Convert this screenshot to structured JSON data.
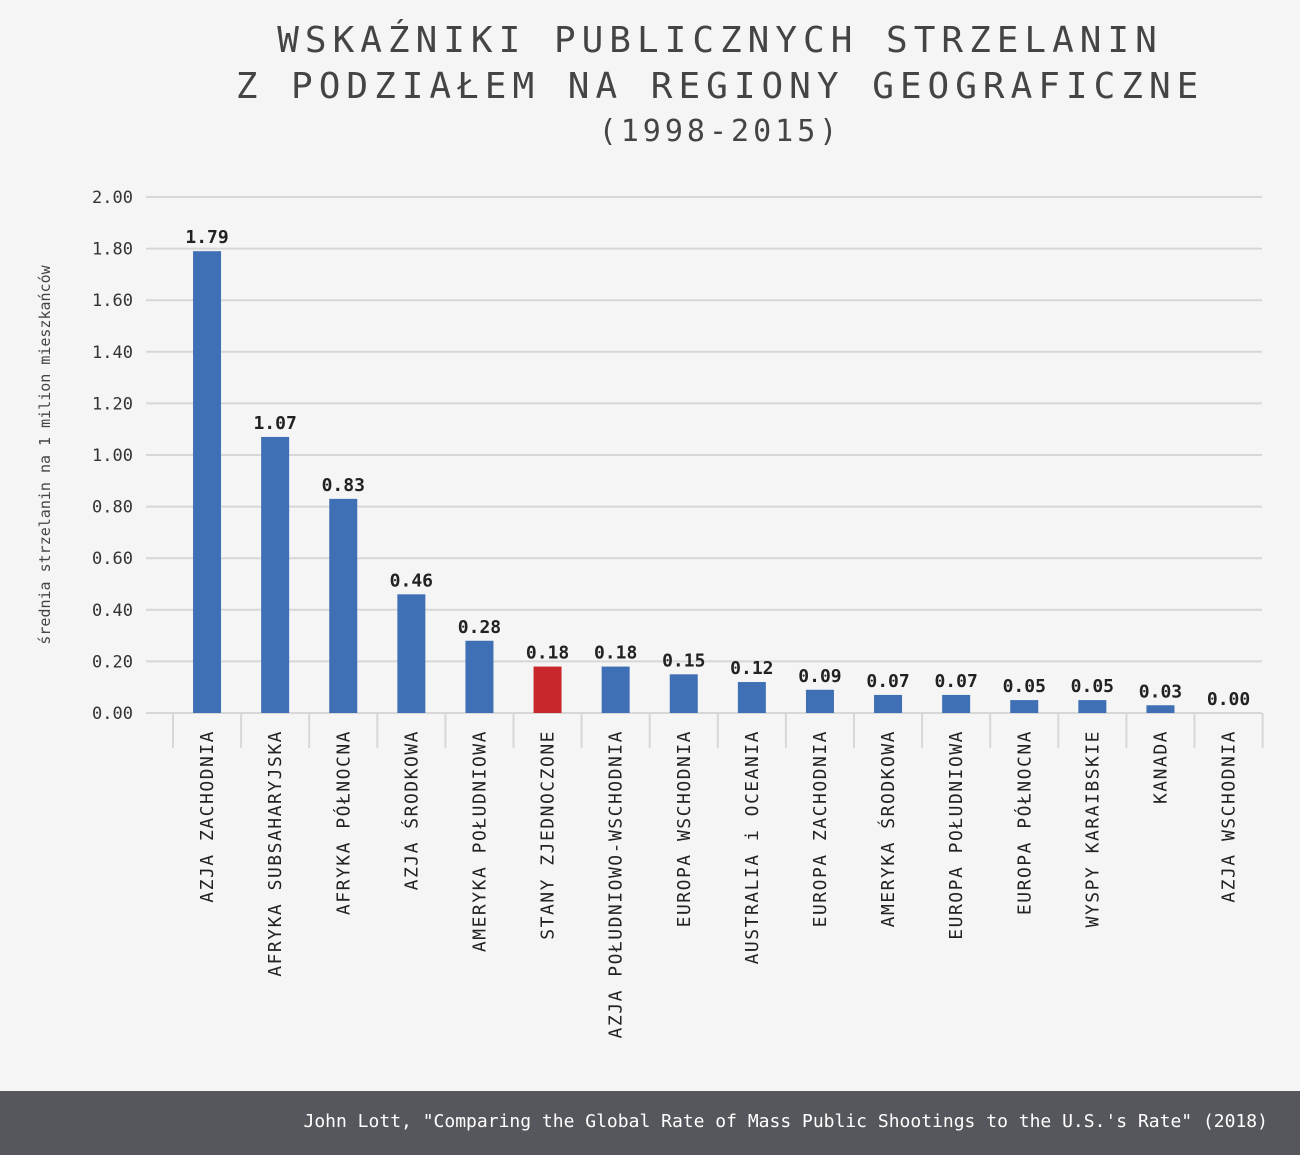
{
  "title_lines": [
    "WSKAŹNIKI PUBLICZNYCH STRZELANIN",
    "Z PODZIAŁEM NA REGIONY GEOGRAFICZNE"
  ],
  "subtitle": "(1998-2015)",
  "source": "John Lott, \"Comparing the Global Rate of Mass Public Shootings to the U.S.'s Rate\" (2018)",
  "colors": {
    "bar": "#3f6fb5",
    "highlight": "#c8282b",
    "grid": "#d7d7d7",
    "footer": "#56575c"
  },
  "chart_data": {
    "type": "bar",
    "title": "WSKAŹNIKI PUBLICZNYCH STRZELANIN Z PODZIAŁEM NA REGIONY GEOGRAFICZNE",
    "subtitle": "(1998-2015)",
    "xlabel": "",
    "ylabel": "średnia strzelanin na 1 milion mieszkańców",
    "ylim": [
      0,
      2
    ],
    "yticks": [
      "0.00",
      "0.20",
      "0.40",
      "0.60",
      "0.80",
      "1.00",
      "1.20",
      "1.40",
      "1.60",
      "1.80",
      "2.00"
    ],
    "grid": true,
    "categories": [
      "AZJA ZACHODNIA",
      "AFRYKA SUBSAHARYJSKA",
      "AFRYKA PÓŁNOCNA",
      "AZJA ŚRODKOWA",
      "AMERYKA POŁUDNIOWA",
      "STANY ZJEDNOCZONE",
      "AZJA POŁUDNIOWO-WSCHODNIA",
      "EUROPA WSCHODNIA",
      "AUSTRALIA i OCEANIA",
      "EUROPA ZACHODNIA",
      "AMERYKA ŚRODKOWA",
      "EUROPA POŁUDNIOWA",
      "EUROPA PÓŁNOCNA",
      "WYSPY KARAIBSKIE",
      "KANADA",
      "AZJA WSCHODNIA"
    ],
    "values": [
      1.79,
      1.07,
      0.83,
      0.46,
      0.28,
      0.18,
      0.18,
      0.15,
      0.12,
      0.09,
      0.07,
      0.07,
      0.05,
      0.05,
      0.03,
      0.0
    ],
    "value_labels": [
      "1.79",
      "1.07",
      "0.83",
      "0.46",
      "0.28",
      "0.18",
      "0.18",
      "0.15",
      "0.12",
      "0.09",
      "0.07",
      "0.07",
      "0.05",
      "0.05",
      "0.03",
      "0.00"
    ],
    "highlight_index": 5
  }
}
